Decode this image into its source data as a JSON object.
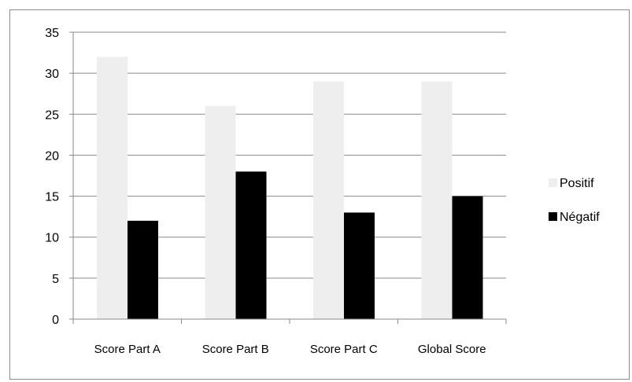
{
  "chart_data": {
    "type": "bar",
    "title": "",
    "xlabel": "",
    "ylabel": "",
    "categories": [
      "Score Part A",
      "Score Part B",
      "Score Part C",
      "Global Score"
    ],
    "series": [
      {
        "name": "Positif",
        "values": [
          32,
          26,
          29,
          29
        ],
        "color": "#eeeeee"
      },
      {
        "name": "Négatif",
        "values": [
          12,
          18,
          13,
          15
        ],
        "color": "#000000"
      }
    ],
    "ylim": [
      0,
      35
    ],
    "yticks": [
      0,
      5,
      10,
      15,
      20,
      25,
      30,
      35
    ],
    "grid": true,
    "legend_position": "right"
  }
}
